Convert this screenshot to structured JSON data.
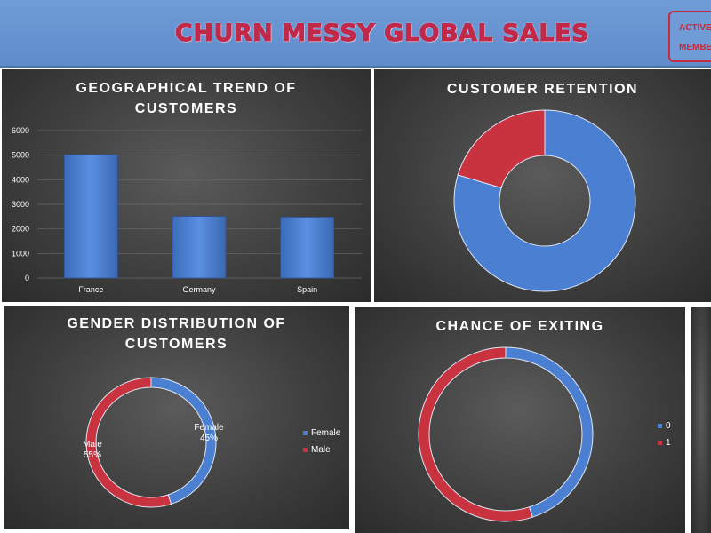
{
  "header": {
    "title": "CHURN MESSY GLOBAL SALES",
    "active_label_1": "ACTIVE",
    "active_label_2": "MEMBE"
  },
  "colors": {
    "blue": "#4a7fd1",
    "red": "#c8333f",
    "accent": "#c0294a"
  },
  "panels": {
    "geo": {
      "title_line1": "GEOGRAPHICAL TREND OF",
      "title_line2": "CUSTOMERS"
    },
    "retention": {
      "title": "CUSTOMER RETENTION"
    },
    "gender": {
      "title_line1": "GENDER DISTRIBUTION OF",
      "title_line2": "CUSTOMERS",
      "female_name": "Female",
      "female_pct": "45%",
      "male_name": "Male",
      "male_pct": "55%",
      "legend_female": "Female",
      "legend_male": "Male"
    },
    "exit": {
      "title": "CHANCE OF EXITING",
      "legend_0": "0",
      "legend_1": "1"
    }
  },
  "chart_data": [
    {
      "type": "bar",
      "title": "GEOGRAPHICAL TREND OF CUSTOMERS",
      "categories": [
        "France",
        "Germany",
        "Spain"
      ],
      "values": [
        5014,
        2509,
        2477
      ],
      "ylim": [
        0,
        6000
      ],
      "yticks": [
        0,
        1000,
        2000,
        3000,
        4000,
        5000,
        6000
      ],
      "grid": true
    },
    {
      "type": "pie",
      "title": "CUSTOMER RETENTION",
      "donut": true,
      "values": [
        79.6,
        20.4
      ],
      "colors": [
        "#4a7fd1",
        "#c8333f"
      ]
    },
    {
      "type": "pie",
      "title": "GENDER DISTRIBUTION OF CUSTOMERS",
      "donut": true,
      "labels": [
        "Female",
        "Male"
      ],
      "values": [
        45,
        55
      ],
      "colors": [
        "#4a7fd1",
        "#c8333f"
      ],
      "legend": "right"
    },
    {
      "type": "pie",
      "title": "CHANCE OF EXITING",
      "donut": true,
      "labels": [
        "0",
        "1"
      ],
      "values": [
        45,
        55
      ],
      "colors": [
        "#4a7fd1",
        "#c8333f"
      ],
      "legend": "right"
    }
  ]
}
